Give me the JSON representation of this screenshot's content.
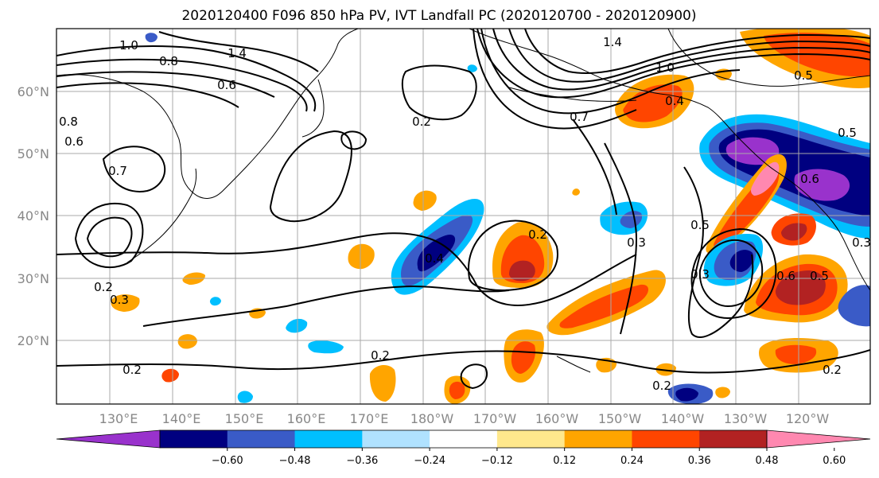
{
  "figure": {
    "title": "2020120400 F096 850 hPa PV, IVT Landfall PC (2020120700 - 2020120900)"
  },
  "map": {
    "lon_labels": [
      "130°E",
      "140°E",
      "150°E",
      "160°E",
      "170°E",
      "180°W",
      "170°W",
      "160°W",
      "150°W",
      "140°W",
      "130°W",
      "120°W"
    ],
    "lat_labels": [
      "60°N",
      "50°N",
      "40°N",
      "30°N",
      "20°N"
    ],
    "contour_labels": [
      "1.0",
      "0.8",
      "1.4",
      "0.6",
      "0.2",
      "0.7",
      "1.4",
      "1.0",
      "0.4",
      "0.8",
      "0.6",
      "0.5",
      "0.3",
      "0.5",
      "0.3",
      "0.6",
      "0.5",
      "0.2",
      "0.2",
      "0.3",
      "0.2",
      "0.2",
      "0.2",
      "0.4",
      "0.2",
      "0.3",
      "0.6",
      "0.5",
      "0.7"
    ]
  },
  "colorbar": {
    "ticks": [
      "−0.60",
      "−0.48",
      "−0.36",
      "−0.24",
      "−0.12",
      "0.12",
      "0.24",
      "0.36",
      "0.48",
      "0.60"
    ],
    "colors": [
      "#9932CC",
      "#000080",
      "#3A5BC7",
      "#00BFFF",
      "#B0E2FF",
      "#FFFFFF",
      "#FFE88C",
      "#FFA500",
      "#FF4500",
      "#B22222",
      "#FF88B0"
    ]
  },
  "colors": {
    "contour": "#000000",
    "grid": "#aaaaaa",
    "coast": "#000000"
  }
}
